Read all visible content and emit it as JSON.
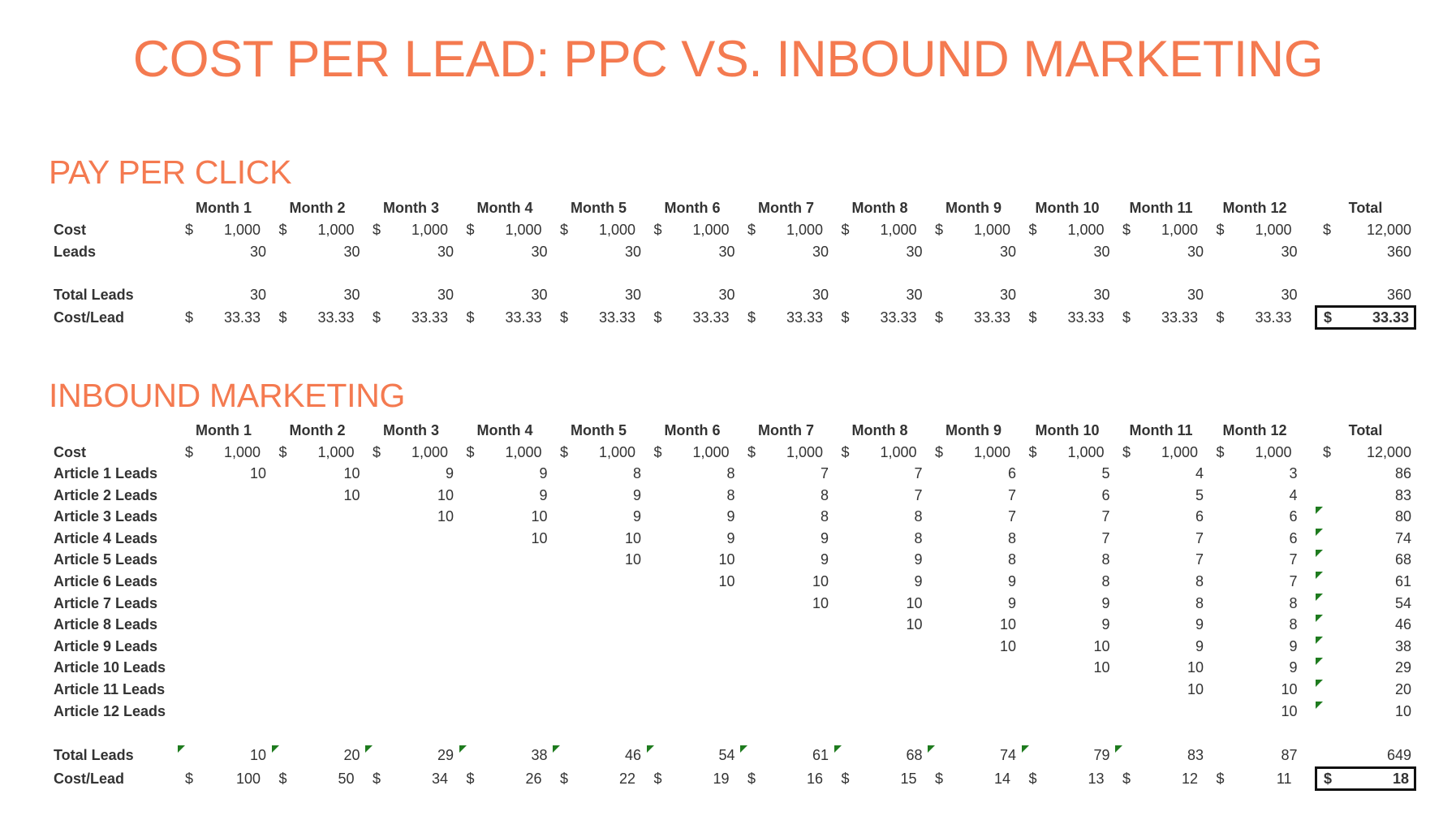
{
  "title": "COST PER LEAD: PPC VS. INBOUND MARKETING",
  "colors": {
    "accent": "#F47A50",
    "text": "#333333",
    "flag": "#1E7B1E",
    "box_border": "#111111"
  },
  "months": [
    "Month 1",
    "Month 2",
    "Month 3",
    "Month 4",
    "Month 5",
    "Month 6",
    "Month 7",
    "Month 8",
    "Month 9",
    "Month 10",
    "Month 11",
    "Month 12"
  ],
  "total_header": "Total",
  "currency_symbol": "$",
  "ppc": {
    "heading": "PAY PER CLICK",
    "rows": [
      {
        "label": "Cost",
        "money": true,
        "values": [
          "1,000",
          "1,000",
          "1,000",
          "1,000",
          "1,000",
          "1,000",
          "1,000",
          "1,000",
          "1,000",
          "1,000",
          "1,000",
          "1,000"
        ],
        "total": "12,000"
      },
      {
        "label": "Leads",
        "money": false,
        "values": [
          "30",
          "30",
          "30",
          "30",
          "30",
          "30",
          "30",
          "30",
          "30",
          "30",
          "30",
          "30"
        ],
        "total": "360"
      },
      {
        "label": "Total Leads",
        "money": false,
        "values": [
          "30",
          "30",
          "30",
          "30",
          "30",
          "30",
          "30",
          "30",
          "30",
          "30",
          "30",
          "30"
        ],
        "total": "360"
      },
      {
        "label": "Cost/Lead",
        "money": true,
        "values": [
          "33.33",
          "33.33",
          "33.33",
          "33.33",
          "33.33",
          "33.33",
          "33.33",
          "33.33",
          "33.33",
          "33.33",
          "33.33",
          "33.33"
        ],
        "total": "33.33",
        "total_boxed": true
      }
    ]
  },
  "inbound": {
    "heading": "INBOUND MARKETING",
    "rows": [
      {
        "label": "Cost",
        "money": true,
        "values": [
          "1,000",
          "1,000",
          "1,000",
          "1,000",
          "1,000",
          "1,000",
          "1,000",
          "1,000",
          "1,000",
          "1,000",
          "1,000",
          "1,000"
        ],
        "total": "12,000"
      },
      {
        "label": "Article 1 Leads",
        "values": [
          "10",
          "10",
          "9",
          "9",
          "8",
          "8",
          "7",
          "7",
          "6",
          "5",
          "4",
          "3"
        ],
        "total": "86"
      },
      {
        "label": "Article 2 Leads",
        "values": [
          "",
          "10",
          "10",
          "9",
          "9",
          "8",
          "8",
          "7",
          "7",
          "6",
          "5",
          "4"
        ],
        "total": "83"
      },
      {
        "label": "Article 3 Leads",
        "values": [
          "",
          "",
          "10",
          "10",
          "9",
          "9",
          "8",
          "8",
          "7",
          "7",
          "6",
          "6"
        ],
        "total": "80",
        "total_flag": true
      },
      {
        "label": "Article 4 Leads",
        "values": [
          "",
          "",
          "",
          "10",
          "10",
          "9",
          "9",
          "8",
          "8",
          "7",
          "7",
          "6"
        ],
        "total": "74",
        "total_flag": true
      },
      {
        "label": "Article 5 Leads",
        "values": [
          "",
          "",
          "",
          "",
          "10",
          "10",
          "9",
          "9",
          "8",
          "8",
          "7",
          "7"
        ],
        "total": "68",
        "total_flag": true
      },
      {
        "label": "Article 6 Leads",
        "values": [
          "",
          "",
          "",
          "",
          "",
          "10",
          "10",
          "9",
          "9",
          "8",
          "8",
          "7"
        ],
        "total": "61",
        "total_flag": true
      },
      {
        "label": "Article 7 Leads",
        "values": [
          "",
          "",
          "",
          "",
          "",
          "",
          "10",
          "10",
          "9",
          "9",
          "8",
          "8"
        ],
        "total": "54",
        "total_flag": true
      },
      {
        "label": "Article 8 Leads",
        "values": [
          "",
          "",
          "",
          "",
          "",
          "",
          "",
          "10",
          "10",
          "9",
          "9",
          "8"
        ],
        "total": "46",
        "total_flag": true
      },
      {
        "label": "Article 9 Leads",
        "values": [
          "",
          "",
          "",
          "",
          "",
          "",
          "",
          "",
          "10",
          "10",
          "9",
          "9"
        ],
        "total": "38",
        "total_flag": true
      },
      {
        "label": "Article 10 Leads",
        "values": [
          "",
          "",
          "",
          "",
          "",
          "",
          "",
          "",
          "",
          "10",
          "10",
          "9"
        ],
        "total": "29",
        "total_flag": true
      },
      {
        "label": "Article 11 Leads",
        "values": [
          "",
          "",
          "",
          "",
          "",
          "",
          "",
          "",
          "",
          "",
          "10",
          "10"
        ],
        "total": "20",
        "total_flag": true
      },
      {
        "label": "Article 12 Leads",
        "values": [
          "",
          "",
          "",
          "",
          "",
          "",
          "",
          "",
          "",
          "",
          "",
          "10"
        ],
        "total": "10",
        "total_flag": true
      },
      {
        "label": "Total Leads",
        "values": [
          "10",
          "20",
          "29",
          "38",
          "46",
          "54",
          "61",
          "68",
          "74",
          "79",
          "83",
          "87"
        ],
        "total": "649",
        "flags": [
          true,
          true,
          true,
          true,
          true,
          true,
          true,
          true,
          true,
          true,
          true,
          false
        ]
      },
      {
        "label": "Cost/Lead",
        "money": true,
        "values": [
          "100",
          "50",
          "34",
          "26",
          "22",
          "19",
          "16",
          "15",
          "14",
          "13",
          "12",
          "11"
        ],
        "total": "18",
        "total_boxed": true
      }
    ]
  },
  "chart_data": {
    "type": "table",
    "title": "COST PER LEAD: PPC VS. INBOUND MARKETING",
    "tables": [
      {
        "name": "PAY PER CLICK",
        "columns": [
          "Month 1",
          "Month 2",
          "Month 3",
          "Month 4",
          "Month 5",
          "Month 6",
          "Month 7",
          "Month 8",
          "Month 9",
          "Month 10",
          "Month 11",
          "Month 12",
          "Total"
        ],
        "rows": {
          "Cost": [
            1000,
            1000,
            1000,
            1000,
            1000,
            1000,
            1000,
            1000,
            1000,
            1000,
            1000,
            1000,
            12000
          ],
          "Leads": [
            30,
            30,
            30,
            30,
            30,
            30,
            30,
            30,
            30,
            30,
            30,
            30,
            360
          ],
          "Total Leads": [
            30,
            30,
            30,
            30,
            30,
            30,
            30,
            30,
            30,
            30,
            30,
            30,
            360
          ],
          "Cost/Lead": [
            33.33,
            33.33,
            33.33,
            33.33,
            33.33,
            33.33,
            33.33,
            33.33,
            33.33,
            33.33,
            33.33,
            33.33,
            33.33
          ]
        }
      },
      {
        "name": "INBOUND MARKETING",
        "columns": [
          "Month 1",
          "Month 2",
          "Month 3",
          "Month 4",
          "Month 5",
          "Month 6",
          "Month 7",
          "Month 8",
          "Month 9",
          "Month 10",
          "Month 11",
          "Month 12",
          "Total"
        ],
        "rows": {
          "Cost": [
            1000,
            1000,
            1000,
            1000,
            1000,
            1000,
            1000,
            1000,
            1000,
            1000,
            1000,
            1000,
            12000
          ],
          "Total Leads": [
            10,
            20,
            29,
            38,
            46,
            54,
            61,
            68,
            74,
            79,
            83,
            87,
            649
          ],
          "Cost/Lead": [
            100,
            50,
            34,
            26,
            22,
            19,
            16,
            15,
            14,
            13,
            12,
            11,
            18
          ]
        }
      }
    ]
  }
}
